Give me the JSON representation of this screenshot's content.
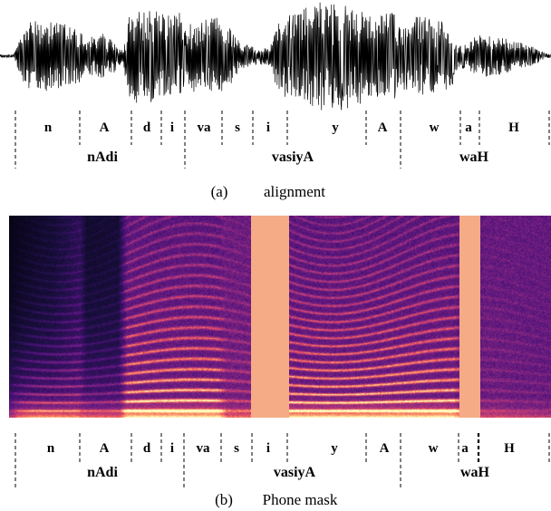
{
  "figure": {
    "phones": [
      "n",
      "A",
      "d",
      "i",
      "va",
      "s",
      "i",
      "y",
      "A",
      "w",
      "a",
      "H"
    ],
    "words": [
      "nAdi",
      "vasiyA",
      "waH"
    ],
    "panel_a": {
      "label": "(a)",
      "caption": "alignment"
    },
    "panel_b": {
      "label": "(b)",
      "caption": "Phone mask"
    },
    "masked_phones": [
      6,
      10
    ],
    "colors": {
      "mask": "#f4ab86",
      "waveform": "#000000",
      "guides": "#000000"
    }
  }
}
